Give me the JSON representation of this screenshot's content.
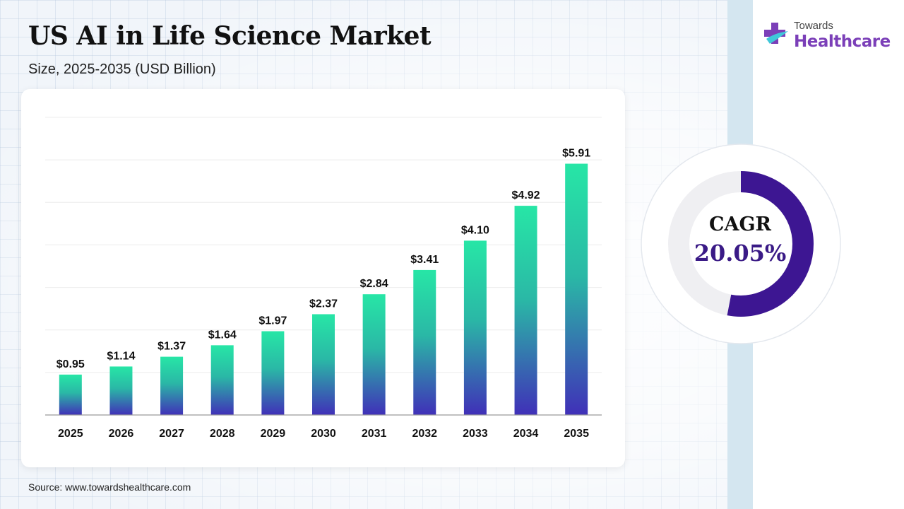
{
  "header": {
    "title": "US AI in Life Science Market",
    "subtitle": "Size, 2025-2035 (USD Billion)"
  },
  "brand": {
    "line1": "Towards",
    "line2": "Healthcare",
    "icon": "medical-cross-logo-icon"
  },
  "cagr": {
    "label": "CAGR",
    "value": "20.05%",
    "ring_fill_fraction": 0.53,
    "ring_color": "#3d1692"
  },
  "source": "Source: www.towardshealthcare.com",
  "chart_data": {
    "type": "bar",
    "categories": [
      "2025",
      "2026",
      "2027",
      "2028",
      "2029",
      "2030",
      "2031",
      "2032",
      "2033",
      "2034",
      "2035"
    ],
    "values": [
      0.95,
      1.14,
      1.37,
      1.64,
      1.97,
      2.37,
      2.84,
      3.41,
      4.1,
      4.92,
      5.91
    ],
    "value_labels": [
      "$0.95",
      "$1.14",
      "$1.37",
      "$1.64",
      "$1.97",
      "$2.37",
      "$2.84",
      "$3.41",
      "$4.10",
      "$4.92",
      "$5.91"
    ],
    "ylim": [
      0,
      7
    ],
    "grid": true,
    "bar_gradient_top": "#27e6a6",
    "bar_gradient_bottom": "#4030b8"
  }
}
